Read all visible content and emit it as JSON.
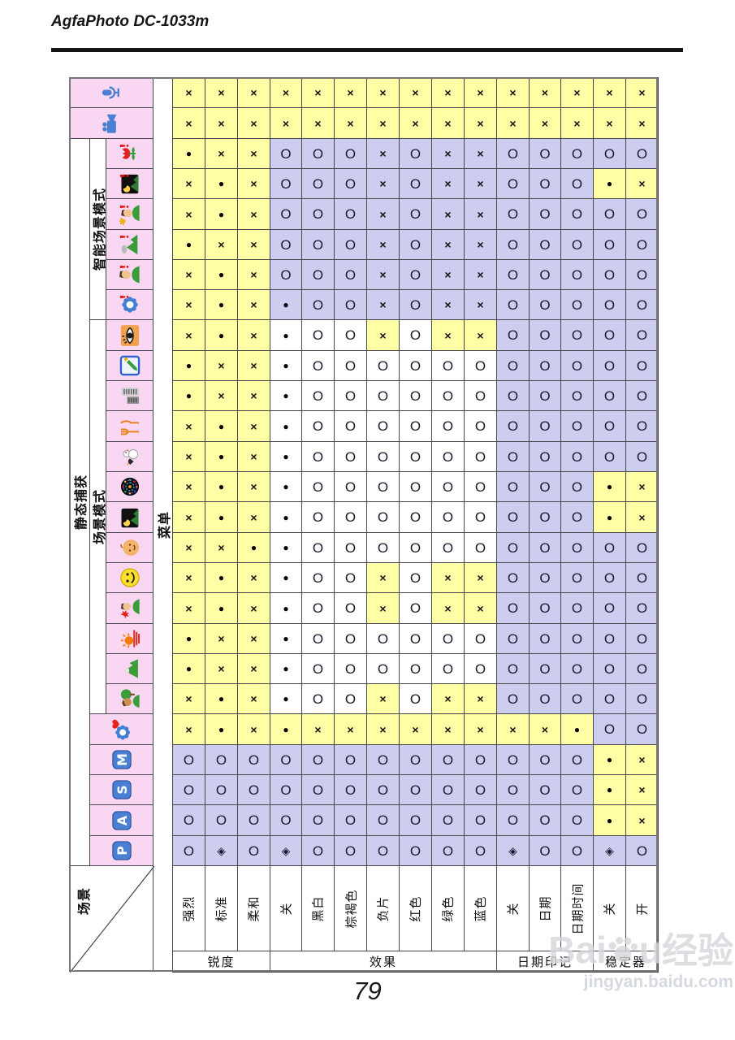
{
  "header": {
    "title": "AgfaPhoto DC-1033m"
  },
  "page_number": "79",
  "watermark": {
    "brand_left": "Bai",
    "brand_right": "u",
    "brand_cn": "经验",
    "url": "jingyan.baidu.com"
  },
  "left_labels": {
    "static_capture": "静态捕获",
    "smart_scene": "智能场景模式",
    "scene_mode": "场景模式",
    "menu": "菜单",
    "scene": "场景"
  },
  "symbols": {
    "x": "×",
    "o": "O",
    "d": "●",
    "q": "◈"
  },
  "colors": {
    "yellow": "#ffffa6",
    "lavender": "#cdcdf0",
    "white": "#ffffff",
    "pink": "#f9d7f2",
    "icon_blue": "#4a7fd4"
  },
  "columns": {
    "options": [
      "强烈",
      "标准",
      "柔和",
      "关",
      "黑白",
      "棕褐色",
      "负片",
      "红色",
      "绿色",
      "蓝色",
      "关",
      "日期",
      "日期时间",
      "关",
      "开"
    ],
    "groups": [
      {
        "label": "锐度",
        "span": 3
      },
      {
        "label": "效果",
        "span": 7
      },
      {
        "label": "日期印记",
        "span": 3
      },
      {
        "label": "稳定器",
        "span": 2
      }
    ]
  },
  "table": {
    "rows": [
      {
        "icon": "microphone-icon",
        "span": "full",
        "sym": "x x x x x x x x x x x x x x x",
        "bg": "y y y y y y y y y y y y y y y"
      },
      {
        "icon": "video-camera-icon",
        "span": "full",
        "sym": "x x x x x x x x x x x x x x x",
        "bg": "y y y y y y y y y y y y y y y"
      },
      {
        "icon": "smart-macro-icon",
        "span": "c",
        "sym": "d x x o o o x o x x o o o o o",
        "bg": "y y y l l l l l l l l l l l l"
      },
      {
        "icon": "smart-night-scene-icon",
        "span": "c",
        "sym": "x d x o o o x o x x o o o d x",
        "bg": "y y y l l l l l l l l l l y y"
      },
      {
        "icon": "smart-backlight-portrait-icon",
        "span": "c",
        "sym": "x d x o o o x o x x o o o o o",
        "bg": "y y y l l l l l l l l l l l l"
      },
      {
        "icon": "smart-landscape-icon",
        "span": "c",
        "sym": "d x x o o o x o x x o o o o o",
        "bg": "y y y l l l l l l l l l l l l"
      },
      {
        "icon": "smart-portrait-icon",
        "span": "c",
        "sym": "x d x o o o x o x x o o o o o",
        "bg": "y y y l l l l l l l l l l l l"
      },
      {
        "icon": "smart-auto-icon",
        "span": "c",
        "sym": "x d x d o o x o x x o o o o o",
        "bg": "y y y l l l l l l l l l l l l"
      },
      {
        "icon": "eye-icon",
        "span": "c",
        "sym": "x d x d o o x o x x o o o o o",
        "bg": "y y y w w w y w y y l l l l l"
      },
      {
        "icon": "sketch-icon",
        "span": "c",
        "sym": "d x x d o o o o o o o o o o o",
        "bg": "y y y w w w w w w w l l l l l"
      },
      {
        "icon": "buildings-icon",
        "span": "c",
        "sym": "d x x d o o o o o o o o o o o",
        "bg": "y y y w w w w w w w l l l l l"
      },
      {
        "icon": "food-icon",
        "span": "c",
        "sym": "x d x d o o o o o o o o o o o",
        "bg": "y y y w w w w w w w l l l l l"
      },
      {
        "icon": "birds-icon",
        "span": "c",
        "sym": "x d x d o o o o o o o o o o o",
        "bg": "y y y w w w w w w w l l l l l"
      },
      {
        "icon": "fireworks-icon",
        "span": "c",
        "sym": "x d x d o o o o o o o o o d x",
        "bg": "y y y w w w w w w w l l l y y"
      },
      {
        "icon": "night-scene-icon",
        "span": "c",
        "sym": "x d x d o o o o o o o o o d x",
        "bg": "y y y w w w w w w w l l l y y"
      },
      {
        "icon": "baby-icon",
        "span": "c",
        "sym": "x x d d o o o o o o o o o o o",
        "bg": "y y y w w w w w w w l l l l l"
      },
      {
        "icon": "smile-capture-icon",
        "span": "c",
        "sym": "x d x d o o x o x x o o o o o",
        "bg": "y y y w w w y w y y l l l l l"
      },
      {
        "icon": "antishake-portrait-icon",
        "span": "c",
        "sym": "x d x d o o x o x x o o o o o",
        "bg": "y y y w w w y w y y l l l l l"
      },
      {
        "icon": "sunset-icon",
        "span": "c",
        "sym": "d x x d o o o o o o o o o o o",
        "bg": "y y y w w w w w w w l l l l l"
      },
      {
        "icon": "landscape-icon",
        "span": "c",
        "sym": "d x x d o o o o o o o o o o o",
        "bg": "y y y w w w w w w w l l l l l"
      },
      {
        "icon": "portrait-icon",
        "span": "c",
        "sym": "x d x d o o x o x x o o o o o",
        "bg": "y y y w w w y w y y l l l l l"
      },
      {
        "icon": "capture-mode-icon",
        "span": "bc",
        "sym": "x d x d x x x x x x x x d o o",
        "bg": "y y y y y y y y y y y y y l l"
      },
      {
        "icon": "mode-m-icon",
        "letter": "M",
        "span": "bc",
        "sym": "o o o o o o o o o o o o o d x",
        "bg": "l l l l l l l l l l l l l y y"
      },
      {
        "icon": "mode-s-icon",
        "letter": "S",
        "span": "bc",
        "sym": "o o o o o o o o o o o o o d x",
        "bg": "l l l l l l l l l l l l l y y"
      },
      {
        "icon": "mode-a-icon",
        "letter": "A",
        "span": "bc",
        "sym": "o o o o o o o o o o o o o d x",
        "bg": "l l l l l l l l l l l l l y y"
      },
      {
        "icon": "mode-p-icon",
        "letter": "P",
        "span": "bc",
        "sym": "o q o q o o o o o o q o o q o",
        "bg": "l l l l l l l l l l l l l l l"
      }
    ]
  }
}
